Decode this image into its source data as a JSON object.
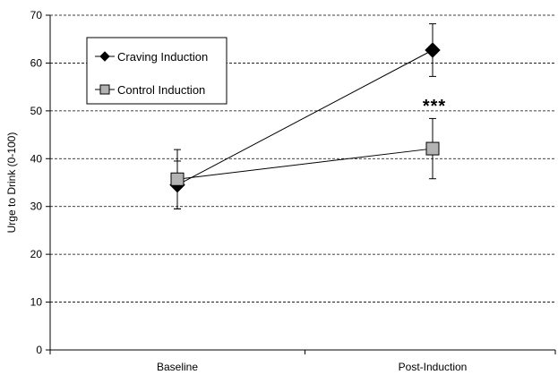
{
  "chart_data": {
    "type": "line",
    "title": "",
    "xlabel": "",
    "ylabel": "Urge to Drink (0-100)",
    "ylim": [
      0,
      70
    ],
    "yticks": [
      0,
      10,
      20,
      30,
      40,
      50,
      60,
      70
    ],
    "categories": [
      "Baseline",
      "Post-Induction"
    ],
    "grid": "horizontal dashed",
    "legend_position": "top-left",
    "series": [
      {
        "name": "Craving Induction",
        "marker": "diamond",
        "color": "#000000",
        "values": [
          34.5,
          62.7
        ],
        "error": [
          5.0,
          5.5
        ]
      },
      {
        "name": "Control Induction",
        "marker": "square",
        "color": "#b3b3b3",
        "values": [
          35.7,
          42.1
        ],
        "error": [
          6.2,
          6.3
        ]
      }
    ],
    "annotations": [
      {
        "text": "***",
        "category": "Post-Induction",
        "y": 51.5
      }
    ]
  }
}
